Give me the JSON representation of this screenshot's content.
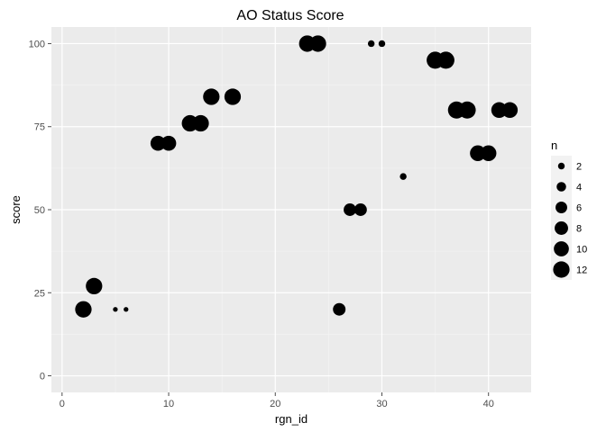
{
  "chart_data": {
    "type": "scatter",
    "title": "AO Status Score",
    "xlabel": "rgn_id",
    "ylabel": "score",
    "xlim": [
      -1,
      44
    ],
    "ylim": [
      -5,
      105
    ],
    "x_ticks": [
      0,
      10,
      20,
      30,
      40
    ],
    "y_ticks": [
      0,
      25,
      50,
      75,
      100
    ],
    "x_tick_labels": [
      "0",
      "10",
      "20",
      "30",
      "40"
    ],
    "y_tick_labels": [
      "0",
      "25",
      "50",
      "75",
      "100"
    ],
    "grid": true,
    "size_variable": "n",
    "legend": {
      "title": "n",
      "placement": "right",
      "entries": [
        {
          "label": "2",
          "n": 2
        },
        {
          "label": "4",
          "n": 4
        },
        {
          "label": "6",
          "n": 6
        },
        {
          "label": "8",
          "n": 8
        },
        {
          "label": "10",
          "n": 10
        },
        {
          "label": "12",
          "n": 12
        }
      ]
    },
    "points": [
      {
        "x": 2,
        "y": 20,
        "n": 12
      },
      {
        "x": 3,
        "y": 27,
        "n": 12
      },
      {
        "x": 5,
        "y": 20,
        "n": 1
      },
      {
        "x": 6,
        "y": 20,
        "n": 1
      },
      {
        "x": 9,
        "y": 70,
        "n": 10
      },
      {
        "x": 10,
        "y": 70,
        "n": 10
      },
      {
        "x": 12,
        "y": 76,
        "n": 12
      },
      {
        "x": 13,
        "y": 76,
        "n": 12
      },
      {
        "x": 14,
        "y": 84,
        "n": 12
      },
      {
        "x": 16,
        "y": 84,
        "n": 12
      },
      {
        "x": 23,
        "y": 100,
        "n": 12
      },
      {
        "x": 24,
        "y": 100,
        "n": 12
      },
      {
        "x": 26,
        "y": 20,
        "n": 7
      },
      {
        "x": 27,
        "y": 50,
        "n": 7
      },
      {
        "x": 28,
        "y": 50,
        "n": 7
      },
      {
        "x": 29,
        "y": 100,
        "n": 2
      },
      {
        "x": 30,
        "y": 100,
        "n": 2
      },
      {
        "x": 32,
        "y": 60,
        "n": 2
      },
      {
        "x": 35,
        "y": 95,
        "n": 13
      },
      {
        "x": 36,
        "y": 95,
        "n": 13
      },
      {
        "x": 37,
        "y": 80,
        "n": 13
      },
      {
        "x": 38,
        "y": 80,
        "n": 13
      },
      {
        "x": 39,
        "y": 67,
        "n": 11
      },
      {
        "x": 40,
        "y": 67,
        "n": 11
      },
      {
        "x": 41,
        "y": 80,
        "n": 11
      },
      {
        "x": 42,
        "y": 80,
        "n": 11
      }
    ],
    "colors": {
      "panel": "#EBEBEB",
      "grid_major": "#FFFFFF",
      "grid_minor": "#F5F5F5",
      "point": "#000000",
      "legend_key": "#F2F2F2",
      "tick": "#4D4D4D"
    }
  }
}
